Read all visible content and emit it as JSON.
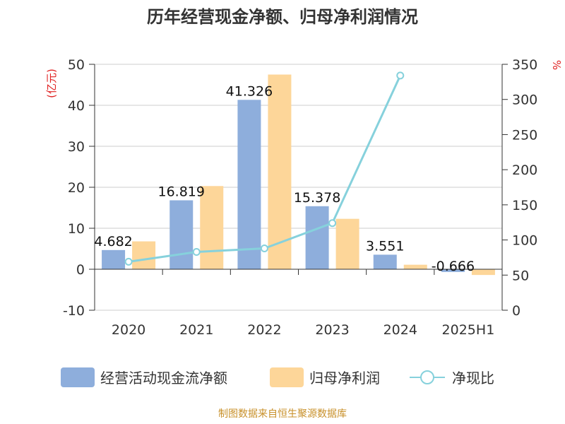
{
  "title": "历年经营现金净额、归母净利润情况",
  "source": "制图数据来自恒生聚源数据库",
  "colors": {
    "cash_flow": "#8eaedc",
    "net_profit": "#fdd699",
    "ratio": "#86d1dc",
    "axis": "#333333",
    "grid": "#cccccc",
    "unit": "#e02020",
    "source": "#c8902a"
  },
  "chart_data": {
    "type": "bar",
    "title": "历年经营现金净额、归母净利润情况",
    "categories": [
      "2020",
      "2021",
      "2022",
      "2023",
      "2024",
      "2025H1"
    ],
    "left_axis": {
      "unit_label": "(亿元)",
      "ylim": [
        -10,
        50
      ],
      "ticks": [
        -10,
        0,
        10,
        20,
        30,
        40,
        50
      ]
    },
    "right_axis": {
      "unit_label": "%",
      "ylim": [
        0,
        350
      ],
      "ticks": [
        0,
        50,
        100,
        150,
        200,
        250,
        300,
        350
      ]
    },
    "series": [
      {
        "name": "经营活动现金流净额",
        "type": "bar",
        "axis": "left",
        "values": [
          4.682,
          16.819,
          41.326,
          15.378,
          3.551,
          -0.666
        ],
        "labels": [
          "4.682",
          "16.819",
          "41.326",
          "15.378",
          "3.551",
          "-0.666"
        ]
      },
      {
        "name": "归母净利润",
        "type": "bar",
        "axis": "left",
        "values": [
          6.8,
          20.3,
          47.5,
          12.3,
          1.1,
          -1.4
        ]
      },
      {
        "name": "净现比",
        "type": "line",
        "axis": "right",
        "values": [
          69,
          83,
          88,
          124,
          334,
          null
        ]
      }
    ],
    "grid": true,
    "legend_position": "bottom"
  }
}
